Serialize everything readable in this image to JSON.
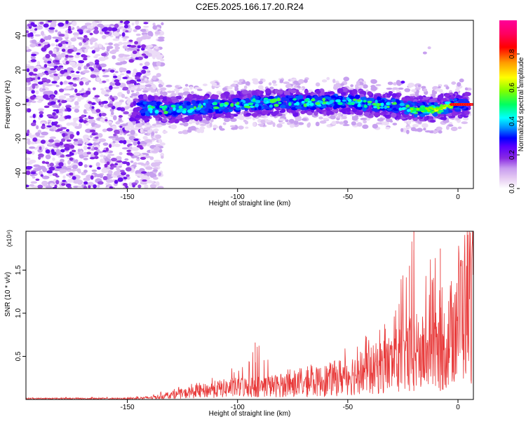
{
  "chart_data": [
    {
      "type": "heatmap",
      "title": "C2E5.2025.166.17.20.R24",
      "xlabel": "Height of straight line (km)",
      "ylabel": "Frequency (Hz)",
      "xlim": [
        -196,
        7
      ],
      "ylim": [
        -49,
        49
      ],
      "x_ticks": [
        -150,
        -100,
        -50,
        0
      ],
      "y_ticks": [
        -40,
        -20,
        0,
        20,
        40
      ],
      "colorbar": {
        "label": "Normalized spectral amplitude",
        "range": [
          0,
          1
        ],
        "ticks": [
          "0.0",
          "0.2",
          "0.4",
          "0.6",
          "0.8"
        ],
        "colors": [
          "#ffffff",
          "#e6ccf2",
          "#c89cf0",
          "#8a2be2",
          "#5a00ff",
          "#0000ff",
          "#0090ff",
          "#00ffff",
          "#00ff60",
          "#80ff00",
          "#ffff00",
          "#ff9900",
          "#ff0000",
          "#ff0060",
          "#ff0099"
        ]
      },
      "ridge": {
        "description_points_x": [
          -145,
          -130,
          -110,
          -90,
          -70,
          -50,
          -40,
          -30,
          -20,
          -10,
          -5,
          0,
          5
        ],
        "center_y": [
          -2,
          -3,
          -1,
          1,
          1,
          2,
          0,
          0,
          -3,
          -3,
          -1,
          0,
          0
        ]
      }
    },
    {
      "type": "line",
      "title": "",
      "xlabel": "Height of straight line (km)",
      "ylabel": "SNR (10 * v/v)",
      "y_multiplier": "(x10⁴)",
      "xlim": [
        -196,
        7
      ],
      "ylim": [
        0,
        1.95
      ],
      "x_ticks": [
        -150,
        -100,
        -50,
        0
      ],
      "y_ticks": [
        "0.5",
        "1.0",
        "1.5"
      ],
      "color": "#e83a3a",
      "envelope": {
        "x": [
          -196,
          -150,
          -140,
          -130,
          -120,
          -110,
          -100,
          -90,
          -80,
          -70,
          -60,
          -50,
          -40,
          -30,
          -20,
          -15,
          -10,
          -5,
          0,
          5,
          7
        ],
        "y_mean": [
          0.01,
          0.01,
          0.02,
          0.05,
          0.08,
          0.12,
          0.14,
          0.15,
          0.16,
          0.18,
          0.22,
          0.28,
          0.33,
          0.42,
          0.55,
          0.52,
          0.55,
          0.62,
          1.0,
          1.15,
          1.25
        ],
        "y_peak": [
          0.02,
          0.03,
          0.05,
          0.12,
          0.2,
          0.32,
          0.38,
          0.66,
          0.35,
          0.38,
          0.5,
          0.62,
          0.78,
          1.1,
          1.95,
          1.52,
          1.75,
          1.2,
          1.22,
          1.3,
          1.5
        ]
      }
    }
  ]
}
